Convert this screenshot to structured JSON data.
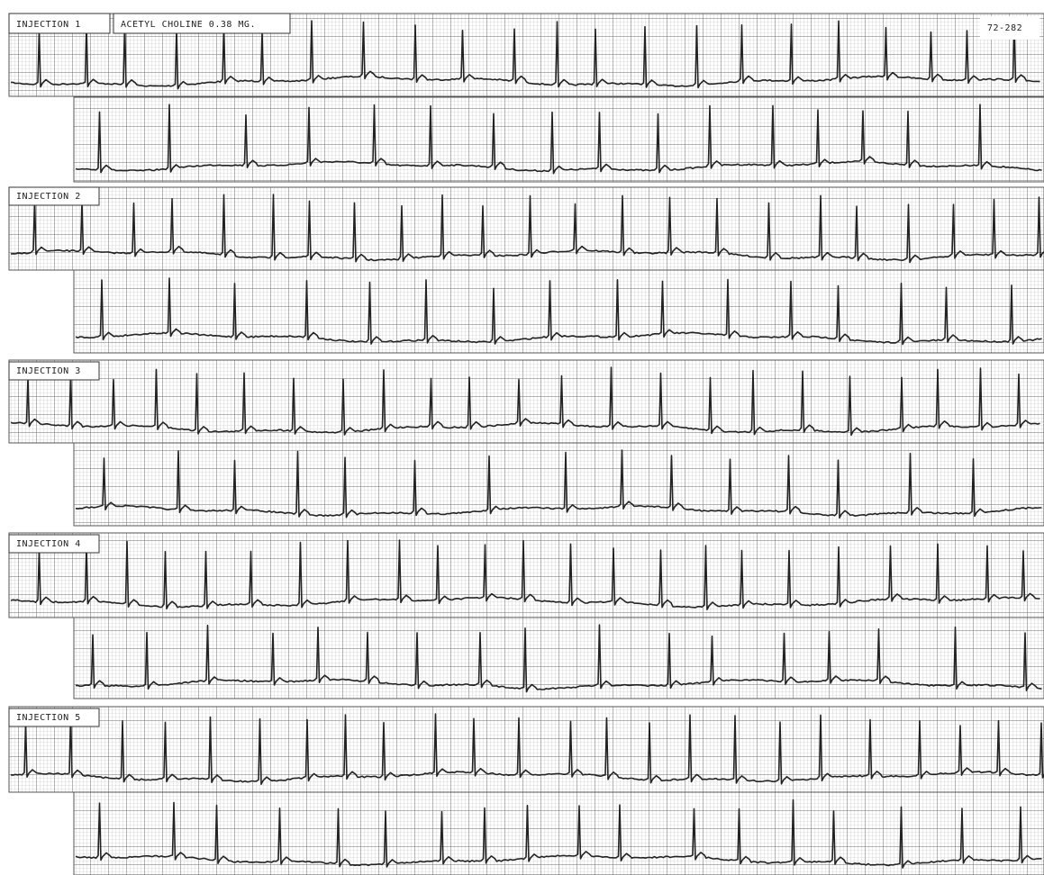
{
  "header": {
    "drug": "ACETYL CHOLINE 0.38 MG.",
    "record_id": "72-282"
  },
  "injections": [
    {
      "label": "INJECTION 1"
    },
    {
      "label": "INJECTION 2"
    },
    {
      "label": "INJECTION 3"
    },
    {
      "label": "INJECTION 4"
    },
    {
      "label": "INJECTION 5"
    }
  ]
}
